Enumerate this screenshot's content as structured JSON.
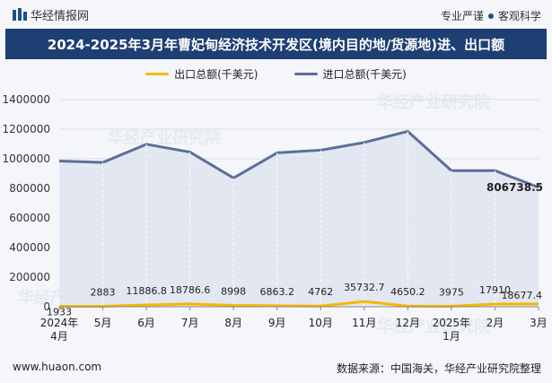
{
  "header": {
    "brand": "华经情报网",
    "tagline_left": "专业严谨",
    "tagline_right": "客观科学",
    "title": "2024-2025年3月年曹妃甸经济技术开发区(境内目的地/货源地)进、出口额"
  },
  "watermark": "华经产业研究院",
  "footer": {
    "website": "www.huaon.com",
    "source": "数据来源：中国海关，华经产业研究院整理"
  },
  "colors": {
    "export": "#f5b800",
    "import": "#5b6f99",
    "import_fill": "#dfe4ee",
    "title_bg": "#1e3f73"
  },
  "chart_data": {
    "type": "area",
    "categories": [
      [
        "2024年",
        "4月"
      ],
      [
        "5月"
      ],
      [
        "6月"
      ],
      [
        "7月"
      ],
      [
        "8月"
      ],
      [
        "9月"
      ],
      [
        "10月"
      ],
      [
        "11月"
      ],
      [
        "12月"
      ],
      [
        "2025年",
        "1月"
      ],
      [
        "2月"
      ],
      [
        "3月"
      ]
    ],
    "series": [
      {
        "name": "出口总额(千美元)",
        "values": [
          1933,
          2883,
          11886.8,
          18786.6,
          8998,
          6863.2,
          4762,
          35732.7,
          4650.2,
          3975,
          17910,
          18677.4
        ],
        "labels": [
          "1933",
          "2883",
          "11886.8",
          "18786.6",
          "8998",
          "6863.2",
          "4762",
          "35732.7",
          "4650.2",
          "3975",
          "17910",
          "18677.4"
        ]
      },
      {
        "name": "进口总额(千美元)",
        "values": [
          985000,
          975000,
          1098000,
          1045000,
          870000,
          1040000,
          1058000,
          1110000,
          1185000,
          920000,
          920000,
          806738.5
        ],
        "last_label": "806738.5"
      }
    ],
    "ylim": [
      0,
      1400000
    ],
    "yticks": [
      "0",
      "200000",
      "400000",
      "600000",
      "800000",
      "1000000",
      "1200000",
      "1400000"
    ],
    "grid": true,
    "legend": "top"
  }
}
